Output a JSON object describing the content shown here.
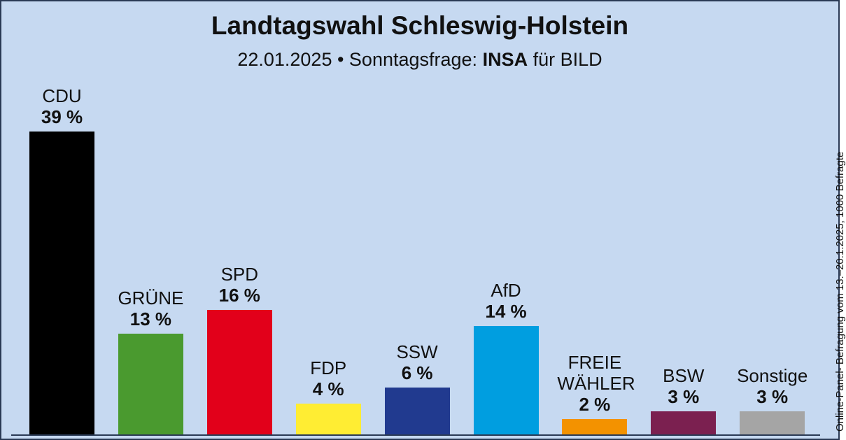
{
  "chart_data": {
    "type": "bar",
    "title": "Landtagswahl Schleswig-Holstein",
    "subtitle": "22.01.2025 • Sonntagsfrage:",
    "pollster": "INSA",
    "client": "für BILD",
    "note": "Online-Panel- Befragung vom 13.–20.1.2025, 1000 Befragte",
    "categories": [
      "CDU",
      "GRÜNE",
      "SPD",
      "FDP",
      "SSW",
      "AfD",
      "FREIE WÄHLER",
      "BSW",
      "Sonstige"
    ],
    "values": [
      39,
      13,
      16,
      4,
      6,
      14,
      2,
      3,
      3
    ],
    "value_labels": [
      "39 %",
      "13 %",
      "16 %",
      "4 %",
      "6 %",
      "14 %",
      "2 %",
      "3 %",
      "3 %"
    ],
    "colors": [
      "#000000",
      "#4a9a2f",
      "#e2001a",
      "#ffed33",
      "#213a8f",
      "#009ee0",
      "#f39200",
      "#7b2050",
      "#a5a5a5"
    ]
  }
}
